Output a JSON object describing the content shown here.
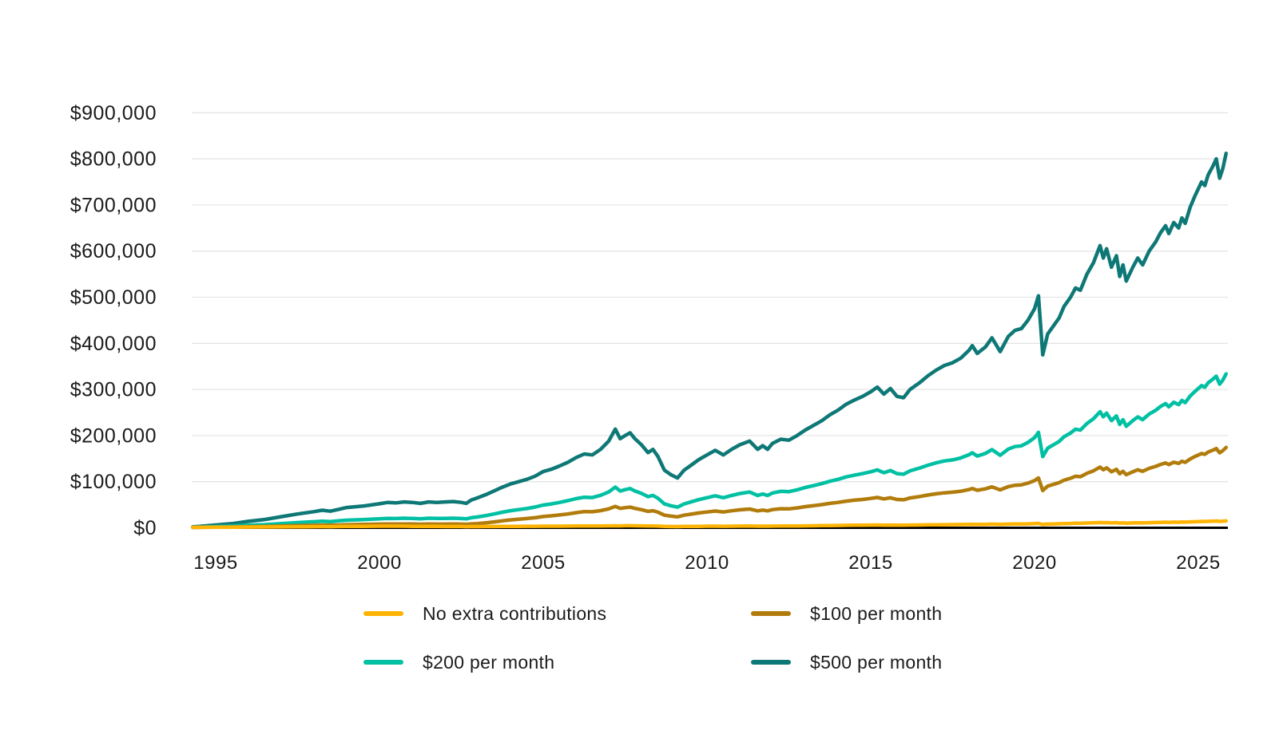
{
  "chart_data": {
    "type": "line",
    "title": "",
    "xlabel": "",
    "ylabel": "",
    "xlim": [
      1994.3,
      2026.2
    ],
    "ylim": [
      0,
      950000
    ],
    "grid": "horizontal",
    "legend_position": "bottom",
    "x_ticks": {
      "values": [
        1995,
        2000,
        2005,
        2010,
        2015,
        2020,
        2025
      ],
      "labels": [
        "1995",
        "2000",
        "2005",
        "2010",
        "2015",
        "2020",
        "2025"
      ]
    },
    "y_ticks": {
      "values": [
        0,
        100000,
        200000,
        300000,
        400000,
        500000,
        600000,
        700000,
        800000,
        900000
      ],
      "labels": [
        "$0",
        "$100,000",
        "$200,000",
        "$300,000",
        "$400,000",
        "$500,000",
        "$600,000",
        "$700,000",
        "$800,000",
        "$900,000"
      ]
    },
    "x": [
      1994.3,
      1994.5,
      1995,
      1995.5,
      1996,
      1996.5,
      1997,
      1997.5,
      1998,
      1998.25,
      1998.5,
      1998.75,
      1999,
      1999.5,
      2000,
      2000.25,
      2000.5,
      2000.75,
      2001,
      2001.25,
      2001.5,
      2001.75,
      2002,
      2002.25,
      2002.5,
      2002.65,
      2002.8,
      2003,
      2003.25,
      2003.5,
      2003.75,
      2004,
      2004.25,
      2004.5,
      2004.75,
      2005,
      2005.25,
      2005.5,
      2005.75,
      2006,
      2006.25,
      2006.5,
      2006.75,
      2007,
      2007.2,
      2007.35,
      2007.5,
      2007.65,
      2007.8,
      2008,
      2008.2,
      2008.35,
      2008.5,
      2008.7,
      2008.9,
      2009.1,
      2009.3,
      2009.5,
      2009.75,
      2010,
      2010.25,
      2010.5,
      2010.75,
      2011,
      2011.3,
      2011.55,
      2011.7,
      2011.85,
      2012,
      2012.25,
      2012.5,
      2012.75,
      2013,
      2013.25,
      2013.5,
      2013.75,
      2014,
      2014.25,
      2014.5,
      2014.75,
      2015,
      2015.2,
      2015.4,
      2015.6,
      2015.8,
      2016,
      2016.2,
      2016.5,
      2016.75,
      2017,
      2017.25,
      2017.5,
      2017.75,
      2018,
      2018.1,
      2018.25,
      2018.5,
      2018.7,
      2018.95,
      2019.2,
      2019.4,
      2019.6,
      2019.8,
      2020,
      2020.12,
      2020.25,
      2020.4,
      2020.6,
      2020.75,
      2020.9,
      2021.1,
      2021.25,
      2021.4,
      2021.6,
      2021.8,
      2022,
      2022.1,
      2022.2,
      2022.35,
      2022.5,
      2022.6,
      2022.7,
      2022.8,
      2023,
      2023.15,
      2023.3,
      2023.5,
      2023.7,
      2023.85,
      2024,
      2024.1,
      2024.25,
      2024.4,
      2024.5,
      2024.6,
      2024.75,
      2024.9,
      2025,
      2025.1,
      2025.2,
      2025.3,
      2025.45,
      2025.55,
      2025.65,
      2025.75,
      2025.85
    ],
    "series": [
      {
        "name": "No extra contributions",
        "color": "#FFB404",
        "values": [
          1000,
          1050,
          1200,
          1350,
          1500,
          1700,
          1900,
          2150,
          2400,
          2550,
          2350,
          2700,
          3000,
          3200,
          3400,
          3500,
          3400,
          3400,
          3100,
          3000,
          3100,
          3000,
          2800,
          2800,
          2700,
          2500,
          2550,
          2600,
          2700,
          2850,
          3000,
          3100,
          3200,
          3250,
          3300,
          3400,
          3450,
          3500,
          3600,
          3800,
          3900,
          3850,
          4000,
          4200,
          4400,
          4200,
          4500,
          4550,
          4400,
          4100,
          3800,
          3900,
          3600,
          3000,
          2800,
          2600,
          2900,
          3000,
          3200,
          3400,
          3500,
          3300,
          3500,
          3700,
          3800,
          3400,
          3550,
          3400,
          3600,
          3800,
          3800,
          3900,
          4200,
          4400,
          4600,
          4900,
          5100,
          5300,
          5500,
          5600,
          5800,
          6000,
          5700,
          5900,
          5600,
          5500,
          5900,
          6100,
          6400,
          6600,
          6800,
          6900,
          7100,
          7400,
          7600,
          7300,
          7500,
          7900,
          7300,
          7900,
          8200,
          8200,
          8500,
          9000,
          9500,
          7100,
          7900,
          8300,
          8600,
          9000,
          9400,
          9800,
          9700,
          10300,
          10800,
          11500,
          11000,
          11300,
          10600,
          11000,
          10200,
          10600,
          10000,
          10500,
          10900,
          10600,
          11100,
          11500,
          11800,
          12100,
          11800,
          12200,
          12000,
          12400,
          12200,
          12800,
          13200,
          13500,
          13800,
          13600,
          14000,
          14400,
          14700,
          13900,
          14300,
          14900
        ]
      },
      {
        "name": "$100 per month",
        "color": "#B17C0B",
        "values": [
          700,
          800,
          1300,
          1700,
          2400,
          3000,
          3800,
          4600,
          5300,
          5800,
          5500,
          6100,
          6700,
          7200,
          7900,
          8300,
          8100,
          8300,
          8100,
          7800,
          8200,
          8000,
          8000,
          8200,
          7900,
          7600,
          8500,
          9100,
          10800,
          12800,
          15000,
          17200,
          18500,
          20100,
          21800,
          24400,
          25900,
          27800,
          30000,
          32700,
          35100,
          34700,
          37200,
          41000,
          46300,
          42000,
          43600,
          44800,
          42100,
          39300,
          35600,
          37100,
          33900,
          27400,
          25200,
          23700,
          27300,
          29400,
          32200,
          34300,
          36400,
          34200,
          36800,
          39000,
          40600,
          36700,
          38400,
          36700,
          39500,
          41400,
          41000,
          43100,
          45800,
          47900,
          50100,
          52900,
          55100,
          57800,
          59800,
          61500,
          63600,
          65800,
          62600,
          65100,
          61500,
          60800,
          64700,
          67900,
          71100,
          73700,
          75800,
          77100,
          79300,
          82900,
          85100,
          81400,
          84400,
          88700,
          82200,
          89300,
          92200,
          93000,
          96800,
          102200,
          108200,
          80700,
          90300,
          94600,
          97900,
          103200,
          107500,
          111800,
          110800,
          118200,
          123600,
          131600,
          125800,
          130000,
          121500,
          126800,
          117200,
          122500,
          115000,
          121400,
          125700,
          122500,
          128900,
          133200,
          137400,
          140700,
          137000,
          142200,
          139600,
          144300,
          141800,
          149200,
          154600,
          157800,
          161000,
          159300,
          164200,
          168500,
          171800,
          162700,
          167400,
          174300
        ]
      },
      {
        "name": "$200 per month",
        "color": "#00C0A3",
        "values": [
          1200,
          1500,
          2600,
          3700,
          5500,
          7000,
          9100,
          11300,
          13100,
          14200,
          13400,
          15000,
          16500,
          17600,
          19400,
          20500,
          20100,
          20700,
          20300,
          19600,
          20700,
          20200,
          20500,
          20800,
          20100,
          19300,
          21800,
          23500,
          26400,
          30000,
          33700,
          37100,
          39400,
          41700,
          44900,
          49300,
          51800,
          55100,
          58900,
          63100,
          66300,
          65500,
          70400,
          77700,
          88200,
          79700,
          82700,
          85100,
          79800,
          74500,
          67500,
          70300,
          64200,
          51800,
          47700,
          44800,
          51700,
          55800,
          61100,
          65200,
          69300,
          65200,
          70100,
          74200,
          77500,
          70000,
          73300,
          70000,
          75400,
          79100,
          78300,
          82300,
          87300,
          91400,
          95600,
          100900,
          105100,
          110400,
          114100,
          117400,
          121500,
          125600,
          119400,
          124300,
          117400,
          116100,
          123500,
          129700,
          135800,
          140800,
          144900,
          147300,
          151500,
          158400,
          162600,
          155600,
          161300,
          169500,
          157200,
          170700,
          176100,
          177700,
          185100,
          195400,
          206900,
          154300,
          172700,
          181000,
          187200,
          197400,
          205600,
          213900,
          211800,
          226200,
          236500,
          251700,
          240600,
          248800,
          232400,
          242600,
          224100,
          234400,
          220000,
          232300,
          240500,
          234400,
          246700,
          254900,
          263100,
          269300,
          262300,
          272100,
          267200,
          276200,
          271300,
          285700,
          295900,
          302100,
          308300,
          304900,
          314400,
          322600,
          328800,
          311500,
          320600,
          333700
        ]
      },
      {
        "name": "$500 per month",
        "color": "#0E7876",
        "values": [
          2000,
          3000,
          6000,
          9000,
          14000,
          18000,
          24000,
          30000,
          35000,
          38000,
          36000,
          40000,
          44000,
          47000,
          52000,
          55000,
          54000,
          56000,
          55000,
          53000,
          56000,
          55000,
          56000,
          57000,
          55000,
          53000,
          60000,
          65000,
          72000,
          80000,
          88000,
          95000,
          100000,
          105000,
          112000,
          122000,
          127000,
          134000,
          142000,
          152000,
          160000,
          158000,
          170000,
          188000,
          214000,
          193000,
          200000,
          206000,
          193000,
          180000,
          163000,
          170000,
          155000,
          125000,
          115000,
          108000,
          125000,
          135000,
          148000,
          158000,
          168000,
          158000,
          170000,
          180000,
          188000,
          170000,
          178000,
          170000,
          183000,
          192000,
          190000,
          200000,
          212000,
          222000,
          232000,
          245000,
          255000,
          268000,
          277000,
          285000,
          295000,
          305000,
          290000,
          302000,
          285000,
          282000,
          300000,
          315000,
          330000,
          342000,
          352000,
          358000,
          368000,
          385000,
          395000,
          378000,
          392000,
          412000,
          382000,
          415000,
          428000,
          432000,
          450000,
          475000,
          503000,
          375000,
          420000,
          440000,
          455000,
          480000,
          500000,
          520000,
          515000,
          550000,
          575000,
          612000,
          585000,
          605000,
          565000,
          590000,
          545000,
          570000,
          535000,
          565000,
          585000,
          570000,
          600000,
          620000,
          640000,
          655000,
          638000,
          662000,
          650000,
          672000,
          660000,
          695000,
          720000,
          735000,
          750000,
          742000,
          765000,
          785000,
          800000,
          758000,
          780000,
          812000
        ]
      }
    ]
  },
  "legend": {
    "items": [
      {
        "label": "No extra contributions",
        "color": "#FFB404"
      },
      {
        "label": "$100 per month",
        "color": "#B17C0B"
      },
      {
        "label": "$200 per month",
        "color": "#00C0A3"
      },
      {
        "label": "$500 per month",
        "color": "#0E7876"
      }
    ]
  },
  "colors": {
    "background": "#ffffff",
    "gridline": "#e5e5e5",
    "axis": "#000000",
    "text": "#1b1b1b"
  }
}
